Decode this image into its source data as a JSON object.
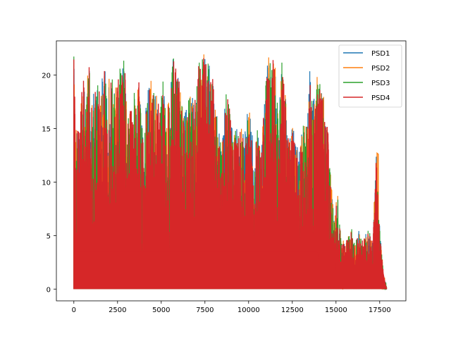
{
  "chart_data": {
    "type": "line",
    "title": "",
    "xlabel": "",
    "ylabel": "",
    "xlim": [
      -1000,
      19000
    ],
    "ylim": [
      -1.1,
      23.2
    ],
    "xticks": [
      0,
      2500,
      5000,
      7500,
      10000,
      12500,
      15000,
      17500
    ],
    "yticks": [
      0,
      5,
      10,
      15,
      20
    ],
    "xtick_labels": [
      "0",
      "2500",
      "5000",
      "7500",
      "10000",
      "12500",
      "15000",
      "17500"
    ],
    "ytick_labels": [
      "0",
      "5",
      "10",
      "15",
      "20"
    ],
    "grid": false,
    "legend_position": "top-right",
    "series": [
      {
        "name": "PSD1",
        "color": "#1f77b4"
      },
      {
        "name": "PSD2",
        "color": "#ff7f0e"
      },
      {
        "name": "PSD3",
        "color": "#2ca02c"
      },
      {
        "name": "PSD4",
        "color": "#d62728"
      }
    ],
    "peak_envelope": {
      "x": [
        0,
        100,
        300,
        500,
        700,
        900,
        1100,
        1300,
        1500,
        1700,
        1900,
        2100,
        2300,
        2500,
        2700,
        2900,
        3100,
        3300,
        3500,
        3700,
        3900,
        4100,
        4300,
        4500,
        4700,
        4900,
        5100,
        5300,
        5500,
        5700,
        5900,
        6100,
        6300,
        6500,
        6700,
        6900,
        7100,
        7300,
        7500,
        7700,
        7900,
        8100,
        8300,
        8500,
        8700,
        8900,
        9100,
        9300,
        9500,
        9700,
        9900,
        10100,
        10300,
        10500,
        10700,
        10900,
        11100,
        11300,
        11500,
        11700,
        11900,
        12100,
        12300,
        12500,
        12700,
        12900,
        13100,
        13300,
        13500,
        13700,
        13900,
        14100,
        14300,
        14500,
        14700,
        14900,
        15100,
        15300,
        15500,
        15700,
        15900,
        16100,
        16300,
        16500,
        16700,
        16900,
        17100,
        17300,
        17500,
        17700,
        17900
      ],
      "y": [
        21.9,
        14.9,
        15.5,
        20.9,
        18.6,
        21.3,
        18.6,
        19.3,
        18.6,
        20.8,
        20.5,
        20.4,
        18.5,
        19.4,
        21.5,
        21.7,
        16.3,
        17.5,
        18.3,
        20.1,
        15.2,
        16.4,
        21.5,
        18.7,
        18.4,
        17.3,
        19.5,
        15.8,
        19.2,
        21.8,
        20.6,
        18.8,
        16.2,
        17.2,
        19.3,
        16.8,
        22.3,
        21.8,
        21.8,
        21.0,
        20.7,
        17.9,
        14.9,
        13.9,
        19.3,
        17.2,
        14.4,
        15.2,
        16.0,
        14.4,
        16.3,
        17.0,
        12.0,
        15.0,
        12.9,
        17.4,
        22.1,
        21.8,
        21.5,
        16.4,
        21.7,
        18.3,
        13.5,
        16.6,
        13.7,
        13.0,
        15.2,
        15.0,
        20.9,
        17.6,
        19.8,
        18.9,
        18.0,
        16.0,
        10.5,
        6.8,
        8.8,
        4.5,
        4.3,
        5.0,
        5.5,
        4.0,
        5.5,
        4.7,
        5.2,
        5.4,
        4.5,
        12.7,
        5.7,
        1.7,
        0.0
      ],
      "note_orange": "PSD2 spike near x=17350 reaches 12.7"
    }
  },
  "legend": {
    "items": [
      "PSD1",
      "PSD2",
      "PSD3",
      "PSD4"
    ]
  }
}
